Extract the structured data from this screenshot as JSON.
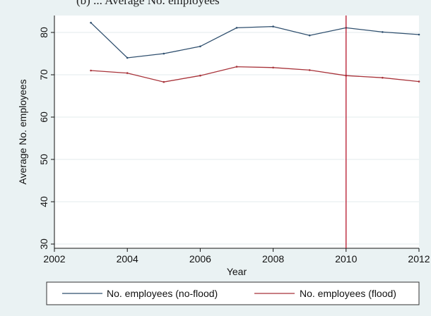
{
  "header": {
    "caption_fragment": "(b) ... Average No. employees"
  },
  "chart_data": {
    "type": "line",
    "title": "",
    "xlabel": "Year",
    "ylabel": "Average No. employees",
    "xlim": [
      2002,
      2012
    ],
    "ylim": [
      29,
      84
    ],
    "xticks": [
      2002,
      2004,
      2006,
      2008,
      2010,
      2012
    ],
    "yticks": [
      30,
      40,
      50,
      60,
      70,
      80
    ],
    "grid": "horizontal",
    "legend_position": "bottom",
    "reference_line": {
      "x": 2010,
      "color": "#b5162b"
    },
    "series": [
      {
        "name": "No. employees (no-flood)",
        "color": "#2f4f6e",
        "x": [
          2003,
          2004,
          2005,
          2006,
          2007,
          2008,
          2009,
          2010,
          2011,
          2012
        ],
        "y": [
          82.3,
          74.0,
          75.0,
          76.7,
          81.1,
          81.4,
          79.3,
          81.1,
          80.1,
          79.5
        ]
      },
      {
        "name": "No. employees (flood)",
        "color": "#a8333a",
        "x": [
          2003,
          2004,
          2005,
          2006,
          2007,
          2008,
          2009,
          2010,
          2011,
          2012
        ],
        "y": [
          71.0,
          70.4,
          68.3,
          69.8,
          71.9,
          71.7,
          71.1,
          69.8,
          69.3,
          68.4
        ]
      }
    ]
  }
}
